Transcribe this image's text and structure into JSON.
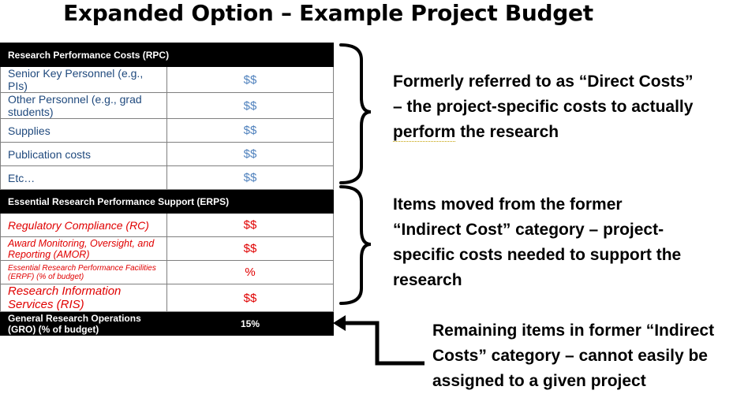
{
  "title": "Expanded Option – Example Project Budget",
  "table": {
    "rpc_header": "Research Performance Costs (RPC)",
    "rpc_rows": [
      {
        "label": "Senior Key Personnel (e.g., PIs)",
        "value": "$$"
      },
      {
        "label": "Other Personnel (e.g., grad students)",
        "value": "$$"
      },
      {
        "label": "Supplies",
        "value": "$$"
      },
      {
        "label": "Publication costs",
        "value": "$$"
      },
      {
        "label": "Etc…",
        "value": "$$"
      }
    ],
    "erps_header": "Essential Research Performance Support (ERPS)",
    "erps_rows": [
      {
        "label": "Regulatory Compliance (RC)",
        "value": "$$"
      },
      {
        "label": "Award Monitoring, Oversight, and Reporting (AMOR)",
        "value": "$$"
      },
      {
        "label": "Essential Research Performance Facilities (ERPF) (% of budget)",
        "value": "%"
      },
      {
        "label": "Research Information Services (RIS)",
        "value": "$$"
      }
    ],
    "gro_label": "General Research Operations (GRO) (% of budget)",
    "gro_value": "15%"
  },
  "annotations": {
    "direct_line1": "Formerly referred to as “Direct Costs”",
    "direct_line2_a": "– the project-specific costs to actually ",
    "direct_line2_b": "perform",
    "direct_line3_a": "perform",
    "direct_line3_b": " the research",
    "indirect_line1": "Items moved from the former",
    "indirect_line2": "“Indirect Cost” category – project-",
    "indirect_line3": "specific costs needed to support the",
    "indirect_line4": "research",
    "remaining_line1": "Remaining items in former “Indirect",
    "remaining_line2": "Costs” category – cannot easily be",
    "remaining_line3": "assigned to a given project"
  }
}
